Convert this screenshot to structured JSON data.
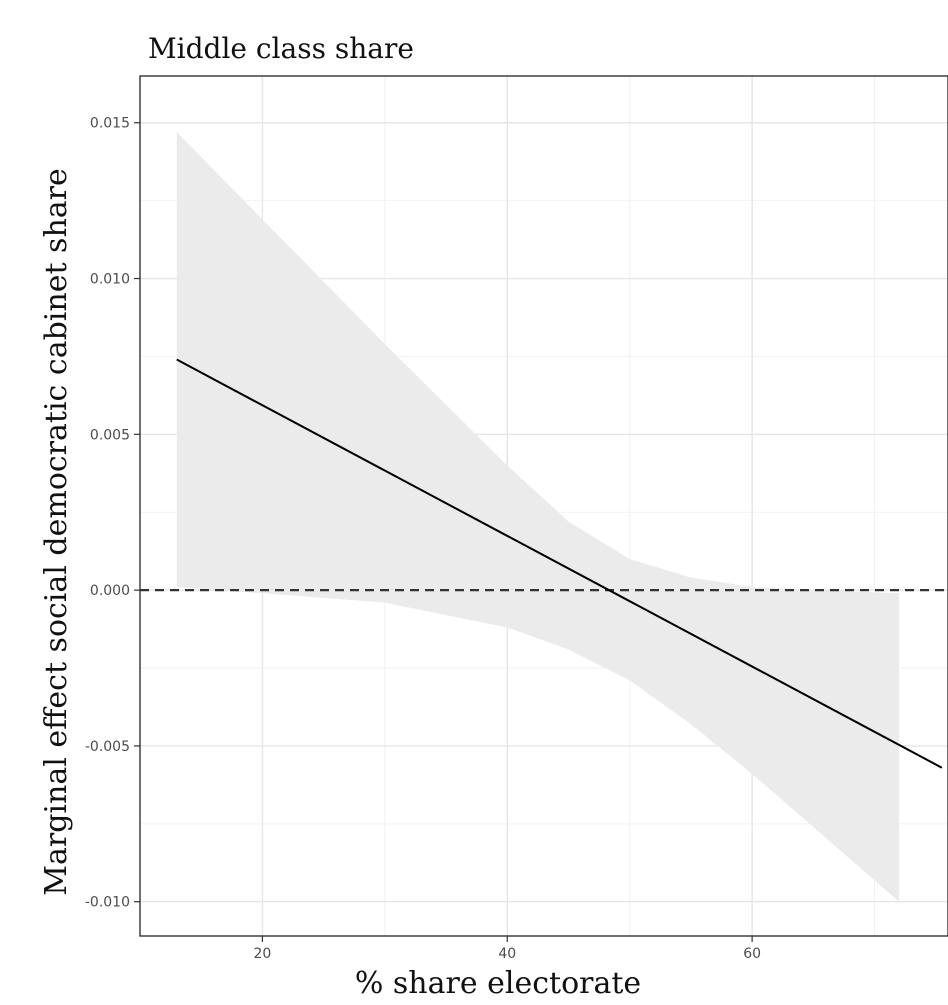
{
  "chart_data": {
    "type": "line",
    "title": "Middle class share",
    "xlabel": "% share electorate",
    "ylabel": "Marginal effect social democratic cabinet share",
    "xlim": [
      10,
      76
    ],
    "ylim": [
      -0.0111,
      0.0165
    ],
    "x_ticks": [
      20,
      40,
      60
    ],
    "x_tick_labels": [
      "20",
      "40",
      "60"
    ],
    "y_ticks": [
      -0.01,
      -0.005,
      0.0,
      0.005,
      0.01,
      0.015
    ],
    "y_tick_labels": [
      "-0.010",
      "-0.005",
      "0.000",
      "0.005",
      "0.010",
      "0.015"
    ],
    "grid": true,
    "reference_line": {
      "y": 0,
      "style": "dashed"
    },
    "series": [
      {
        "values_x": [
          13,
          75.5
        ],
        "values_y": [
          0.0074,
          -0.0057
        ]
      }
    ],
    "confidence_band": {
      "x": [
        13,
        20,
        30,
        40,
        45,
        50,
        55,
        60,
        65,
        72
      ],
      "upper": [
        0.0147,
        0.0119,
        0.0079,
        0.004,
        0.0022,
        0.001,
        0.0004,
        0.0001,
        0.0,
        -0.0001
      ],
      "lower": [
        0.0001,
        -0.0001,
        -0.0004,
        -0.0012,
        -0.0019,
        -0.0029,
        -0.0043,
        -0.0059,
        -0.0076,
        -0.01
      ]
    },
    "colors": {
      "line": "#000000",
      "band": "#ebebeb",
      "grid_major": "#e6e6e6",
      "grid_minor": "#f2f2f2",
      "panel_border": "#333333",
      "reference_line": "#333333"
    }
  }
}
